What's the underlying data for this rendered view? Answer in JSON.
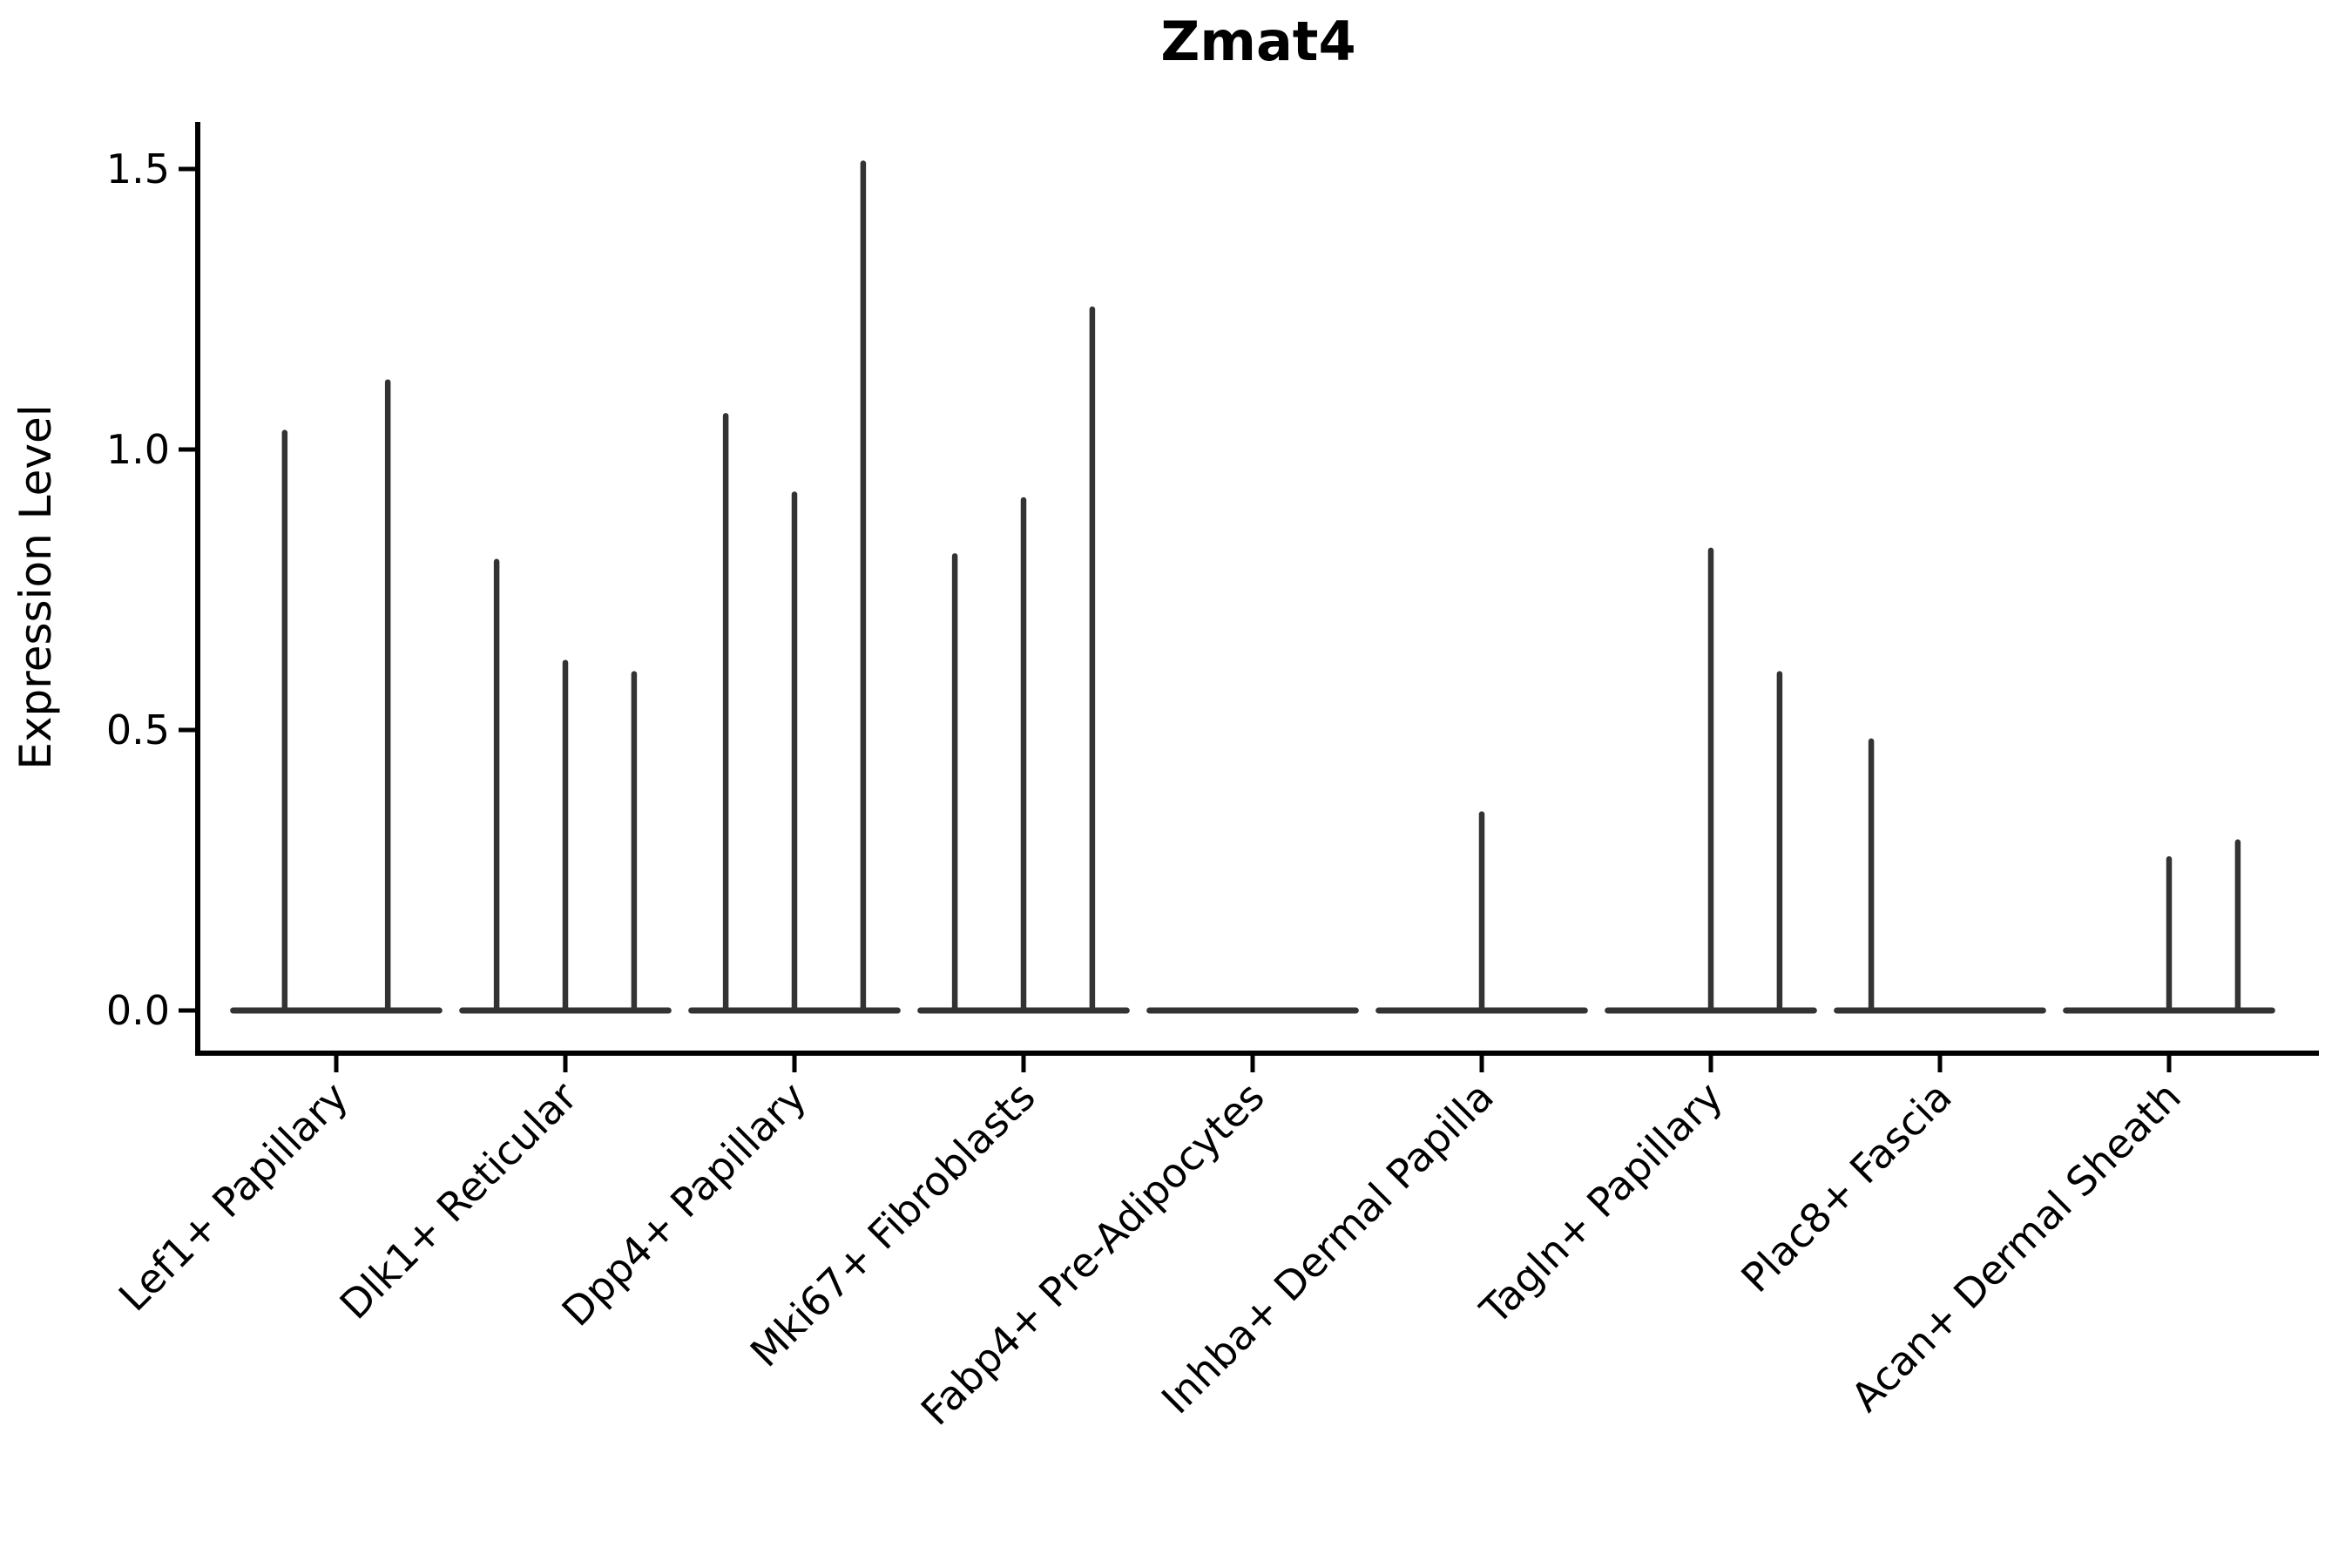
{
  "chart_data": {
    "type": "violin",
    "title": "Zmat4",
    "xlabel": "",
    "ylabel": "Expression Level",
    "ytick_labels": [
      "0.0",
      "0.5",
      "1.0",
      "1.5"
    ],
    "ytick_values": [
      0.0,
      0.5,
      1.0,
      1.5
    ],
    "ylim": [
      -0.075,
      1.585
    ],
    "grid": false,
    "legend_position": "none",
    "violin_color": "#333333",
    "axis_color": "#000000",
    "categories": [
      "Lef1+ Papillary",
      "Dlk1+ Reticular",
      "Dpp4+ Papillary",
      "Mki67+ Fibroblasts",
      "Fabp4+ Pre-Adipocytes",
      "Inhba+ Dermal Papilla",
      "Tagln+ Papillary",
      "Plac8+ Fascia",
      "Acan+ Dermal Sheath"
    ],
    "groups": [
      {
        "label": "Lef1+ Papillary",
        "violins": [
          {
            "dodge_offset": -0.225,
            "max_expression": 1.03
          },
          {
            "dodge_offset": 0.225,
            "max_expression": 1.12
          }
        ]
      },
      {
        "label": "Dlk1+ Reticular",
        "violins": [
          {
            "dodge_offset": -0.3,
            "max_expression": 0.8
          },
          {
            "dodge_offset": 0.0,
            "max_expression": 0.62
          },
          {
            "dodge_offset": 0.3,
            "max_expression": 0.6
          }
        ]
      },
      {
        "label": "Dpp4+ Papillary",
        "violins": [
          {
            "dodge_offset": -0.3,
            "max_expression": 1.06
          },
          {
            "dodge_offset": 0.0,
            "max_expression": 0.92
          },
          {
            "dodge_offset": 0.3,
            "max_expression": 1.51
          }
        ]
      },
      {
        "label": "Mki67+ Fibroblasts",
        "violins": [
          {
            "dodge_offset": -0.3,
            "max_expression": 0.81
          },
          {
            "dodge_offset": 0.0,
            "max_expression": 0.91
          },
          {
            "dodge_offset": 0.3,
            "max_expression": 1.25
          }
        ]
      },
      {
        "label": "Fabp4+ Pre-Adipocytes",
        "violins": []
      },
      {
        "label": "Inhba+ Dermal Papilla",
        "violins": [
          {
            "dodge_offset": 0.0,
            "max_expression": 0.35
          }
        ]
      },
      {
        "label": "Tagln+ Papillary",
        "violins": [
          {
            "dodge_offset": 0.0,
            "max_expression": 0.82
          },
          {
            "dodge_offset": 0.3,
            "max_expression": 0.6
          }
        ]
      },
      {
        "label": "Plac8+ Fascia",
        "violins": [
          {
            "dodge_offset": -0.3,
            "max_expression": 0.48
          }
        ]
      },
      {
        "label": "Acan+ Dermal Sheath",
        "violins": [
          {
            "dodge_offset": 0.0,
            "max_expression": 0.27
          },
          {
            "dodge_offset": 0.3,
            "max_expression": 0.3
          }
        ]
      }
    ],
    "baseline_value": 0.0,
    "baseline_halfwidth_fraction": 0.45
  }
}
